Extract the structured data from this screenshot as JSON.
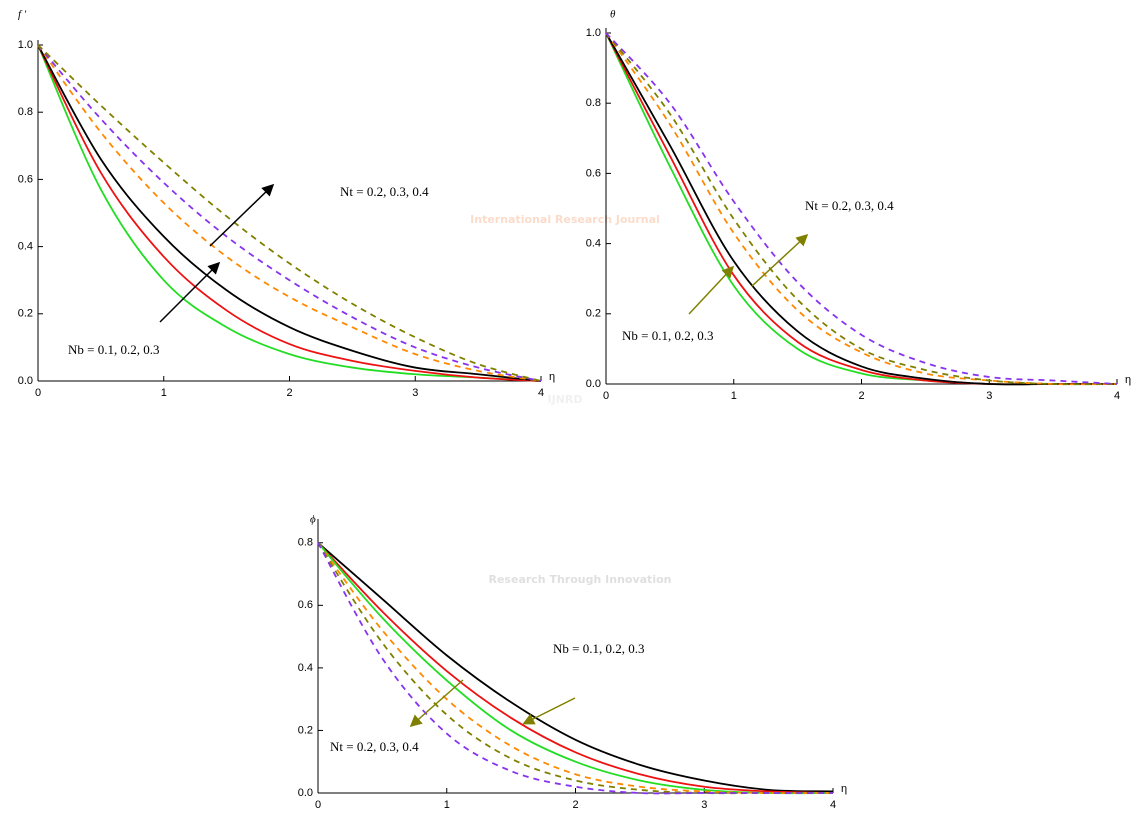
{
  "watermark": {
    "line1": "International Research Journal",
    "logo": "IJNRD",
    "line2": "Research Through Innovation"
  },
  "chart_data": [
    {
      "type": "line",
      "ylabel": "f ′",
      "xlabel": "η",
      "annotations": [
        "Nt = 0.2, 0.3, 0.4",
        "Nb = 0.1, 0.2, 0.3"
      ],
      "x": [
        0,
        0.5,
        1,
        1.5,
        2,
        2.5,
        3,
        3.5,
        4
      ],
      "xlim": [
        0,
        4
      ],
      "ylim": [
        0,
        1
      ],
      "xticks": [
        0,
        1,
        2,
        3,
        4
      ],
      "yticks": [
        {
          "value": 0,
          "label": "0.0"
        },
        0.2,
        0.4,
        0.6,
        0.8,
        {
          "value": 1,
          "label": "1.0"
        }
      ],
      "series": [
        {
          "color": "#22dd22",
          "dashed": false,
          "values": [
            1,
            0.57,
            0.3,
            0.16,
            0.08,
            0.04,
            0.02,
            0.01,
            0
          ]
        },
        {
          "color": "#ee1111",
          "dashed": false,
          "values": [
            1,
            0.62,
            0.37,
            0.21,
            0.11,
            0.06,
            0.03,
            0.01,
            0
          ]
        },
        {
          "color": "#000000",
          "dashed": false,
          "values": [
            1,
            0.66,
            0.43,
            0.27,
            0.16,
            0.09,
            0.04,
            0.02,
            0
          ]
        },
        {
          "color": "#ff8800",
          "dashed": true,
          "values": [
            1,
            0.74,
            0.53,
            0.37,
            0.25,
            0.16,
            0.08,
            0.03,
            0
          ]
        },
        {
          "color": "#8833ee",
          "dashed": true,
          "values": [
            1,
            0.78,
            0.59,
            0.43,
            0.3,
            0.19,
            0.1,
            0.04,
            0
          ]
        },
        {
          "color": "#808000",
          "dashed": true,
          "values": [
            1,
            0.82,
            0.65,
            0.49,
            0.35,
            0.23,
            0.13,
            0.05,
            0
          ]
        }
      ]
    },
    {
      "type": "line",
      "ylabel": "θ",
      "xlabel": "η",
      "annotations": [
        "Nt = 0.2, 0.3, 0.4",
        "Nb = 0.1, 0.2, 0.3"
      ],
      "x": [
        0,
        0.5,
        1,
        1.5,
        2,
        2.5,
        3,
        3.5,
        4
      ],
      "xlim": [
        0,
        4
      ],
      "ylim": [
        0,
        1
      ],
      "xticks": [
        0,
        1,
        2,
        3,
        4
      ],
      "yticks": [
        {
          "value": 0,
          "label": "0.0"
        },
        0.2,
        0.4,
        0.6,
        0.8,
        {
          "value": 1,
          "label": "1.0"
        }
      ],
      "series": [
        {
          "color": "#22dd22",
          "dashed": false,
          "values": [
            1,
            0.62,
            0.28,
            0.1,
            0.03,
            0.01,
            0,
            0,
            0
          ]
        },
        {
          "color": "#ee1111",
          "dashed": false,
          "values": [
            1,
            0.65,
            0.31,
            0.12,
            0.04,
            0.01,
            0,
            0,
            0
          ]
        },
        {
          "color": "#000000",
          "dashed": false,
          "values": [
            1,
            0.68,
            0.35,
            0.15,
            0.05,
            0.015,
            0,
            0,
            0
          ]
        },
        {
          "color": "#ff8800",
          "dashed": true,
          "values": [
            1,
            0.74,
            0.43,
            0.21,
            0.09,
            0.03,
            0.01,
            0,
            0
          ]
        },
        {
          "color": "#808000",
          "dashed": true,
          "values": [
            1,
            0.77,
            0.47,
            0.24,
            0.1,
            0.04,
            0.01,
            0,
            0
          ]
        },
        {
          "color": "#8833ee",
          "dashed": true,
          "values": [
            1,
            0.8,
            0.52,
            0.29,
            0.14,
            0.06,
            0.02,
            0.01,
            0
          ]
        }
      ]
    },
    {
      "type": "line",
      "ylabel": "ϕ",
      "xlabel": "η",
      "annotations": [
        "Nb = 0.1, 0.2, 0.3",
        "Nt = 0.2, 0.3, 0.4"
      ],
      "x": [
        0,
        0.5,
        1,
        1.5,
        2,
        2.5,
        3,
        3.5,
        4
      ],
      "xlim": [
        0,
        4
      ],
      "ylim": [
        0,
        0.86
      ],
      "xticks": [
        0,
        1,
        2,
        3,
        4
      ],
      "yticks": [
        {
          "value": 0,
          "label": "0.0"
        },
        0.2,
        0.4,
        0.6,
        0.8
      ],
      "series": [
        {
          "color": "#000000",
          "dashed": false,
          "values": [
            0.8,
            0.62,
            0.44,
            0.29,
            0.17,
            0.09,
            0.04,
            0.01,
            0.005
          ]
        },
        {
          "color": "#ee1111",
          "dashed": false,
          "values": [
            0.8,
            0.58,
            0.39,
            0.24,
            0.13,
            0.06,
            0.02,
            0.005,
            0
          ]
        },
        {
          "color": "#22dd22",
          "dashed": false,
          "values": [
            0.8,
            0.56,
            0.36,
            0.2,
            0.1,
            0.04,
            0.01,
            0,
            0
          ]
        },
        {
          "color": "#ff8800",
          "dashed": true,
          "values": [
            0.8,
            0.52,
            0.3,
            0.15,
            0.06,
            0.02,
            0.005,
            0,
            0
          ]
        },
        {
          "color": "#808000",
          "dashed": true,
          "values": [
            0.8,
            0.48,
            0.25,
            0.11,
            0.04,
            0.01,
            0,
            0,
            0
          ]
        },
        {
          "color": "#8833ee",
          "dashed": true,
          "values": [
            0.8,
            0.43,
            0.19,
            0.07,
            0.02,
            0,
            0,
            0,
            0
          ]
        }
      ]
    }
  ]
}
